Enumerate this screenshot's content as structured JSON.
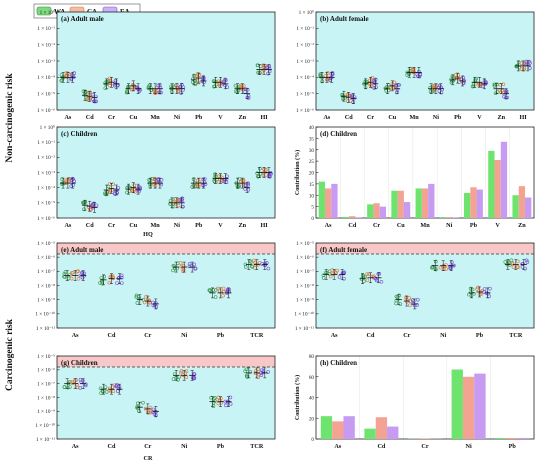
{
  "legend": {
    "items": [
      {
        "label": "WA",
        "color": "#7ddb7d"
      },
      {
        "label": "CA",
        "color": "#f6bba1"
      },
      {
        "label": "EA",
        "color": "#c9b3f4"
      }
    ]
  },
  "colors": {
    "panel_bg": "#c8f4f6",
    "threshold_band": "#f8c8c8",
    "WA_bar": "#6ee46e",
    "CA_bar": "#f3a392",
    "EA_bar": "#c79bf2",
    "WA_point": "#3c9c4c",
    "CA_point": "#e07a3e",
    "EA_point": "#7f4ed8"
  },
  "ylabels": {
    "noncarcinogenic": "Non-carcinogenic risk",
    "carcinogenic": "Carcinogenic risk"
  },
  "xgroup_labels": {
    "hq": "HQ",
    "cr": "CR"
  },
  "chart_data": [
    {
      "id": "a",
      "type": "scatter",
      "title": "(a) Adult male",
      "categories": [
        "As",
        "Cd",
        "Cr",
        "Cu",
        "Mn",
        "Ni",
        "Pb",
        "V",
        "Zn",
        "HI"
      ],
      "ylog": true,
      "ylim": [
        1e-06,
        1
      ],
      "ytick_labels": [
        "1 × 10⁻⁶",
        "1 × 10⁻⁵",
        "1 × 10⁻⁴",
        "1 × 10⁻³",
        "1 × 10⁻²",
        "1 × 10⁻¹",
        "1 × 10⁰"
      ],
      "series": [
        {
          "name": "WA",
          "values": [
            0.0001,
            8e-06,
            4e-05,
            2e-05,
            2e-05,
            2e-05,
            7e-05,
            5e-05,
            2e-05,
            0.0003
          ]
        },
        {
          "name": "CA",
          "values": [
            0.0001,
            7e-06,
            5e-05,
            3e-05,
            2e-05,
            2e-05,
            9e-05,
            5e-05,
            2e-05,
            0.0003
          ]
        },
        {
          "name": "EA",
          "values": [
            0.0001,
            6e-06,
            4e-05,
            2e-05,
            2e-05,
            2e-05,
            6e-05,
            4e-05,
            1e-05,
            0.0003
          ]
        }
      ]
    },
    {
      "id": "b",
      "type": "scatter",
      "title": "(b) Adult female",
      "categories": [
        "As",
        "Cd",
        "Cr",
        "Cu",
        "Mn",
        "Ni",
        "Pb",
        "V",
        "Zn",
        "HI"
      ],
      "ylog": true,
      "ylim": [
        1e-06,
        1
      ],
      "ytick_labels": [
        "1 × 10⁻⁶",
        "1 × 10⁻⁵",
        "1 × 10⁻⁴",
        "1 × 10⁻³",
        "1 × 10⁻²",
        "1 × 10⁻¹",
        "1 × 10⁰"
      ],
      "series": [
        {
          "name": "WA",
          "values": [
            0.0001,
            7e-06,
            4e-05,
            2e-05,
            0.0002,
            2e-05,
            7e-05,
            5e-05,
            2e-05,
            0.0005
          ]
        },
        {
          "name": "CA",
          "values": [
            0.0001,
            6e-06,
            5e-05,
            3e-05,
            0.0002,
            2e-05,
            9e-05,
            5e-05,
            2e-05,
            0.0005
          ]
        },
        {
          "name": "EA",
          "values": [
            0.0001,
            5e-06,
            4e-05,
            2e-05,
            0.0002,
            2e-05,
            6e-05,
            4e-05,
            1e-05,
            0.0005
          ]
        }
      ]
    },
    {
      "id": "c",
      "type": "scatter",
      "title": "(c) Children",
      "categories": [
        "As",
        "Cd",
        "Cr",
        "Cu",
        "Mn",
        "Ni",
        "Pb",
        "V",
        "Zn",
        "HI"
      ],
      "ylog": true,
      "ylim": [
        1e-06,
        1
      ],
      "ytick_labels": [
        "1 × 10⁻⁶",
        "1 × 10⁻⁵",
        "1 × 10⁻⁴",
        "1 × 10⁻³",
        "1 × 10⁻²",
        "1 × 10⁻¹",
        "1 × 10⁰"
      ],
      "series": [
        {
          "name": "WA",
          "values": [
            0.0002,
            7e-06,
            7e-05,
            8e-05,
            0.0002,
            1e-05,
            0.0002,
            0.0004,
            0.0002,
            0.001
          ]
        },
        {
          "name": "CA",
          "values": [
            0.0002,
            6e-06,
            9e-05,
            0.0001,
            0.0002,
            1e-05,
            0.0002,
            0.0004,
            0.0002,
            0.001
          ]
        },
        {
          "name": "EA",
          "values": [
            0.0002,
            5e-06,
            7e-05,
            8e-05,
            0.0002,
            1e-05,
            0.0002,
            0.0004,
            0.0001,
            0.001
          ]
        }
      ]
    },
    {
      "id": "d",
      "type": "bar",
      "title": "(d) Children",
      "ylabel": "Contribution (%)",
      "categories": [
        "As",
        "Cd",
        "Cr",
        "Cu",
        "Mn",
        "Ni",
        "Pb",
        "V",
        "Zn"
      ],
      "ylim": [
        0,
        40
      ],
      "yticks": [
        0,
        5,
        10,
        15,
        20,
        25,
        30,
        35,
        40
      ],
      "series": [
        {
          "name": "WA",
          "values": [
            16,
            0.5,
            6,
            12,
            13,
            0.4,
            11,
            29.5,
            10
          ]
        },
        {
          "name": "CA",
          "values": [
            13,
            0.8,
            6.5,
            12,
            13,
            0.4,
            13.5,
            25.5,
            14
          ]
        },
        {
          "name": "EA",
          "values": [
            15,
            0.3,
            5,
            7,
            15,
            0.3,
            12.5,
            33.5,
            9
          ]
        }
      ]
    },
    {
      "id": "e",
      "type": "scatter",
      "title": "(e) Adult male",
      "categories": [
        "As",
        "Cd",
        "Cr",
        "Ni",
        "Pb",
        "TCR"
      ],
      "ylog": true,
      "ylim": [
        1e-11,
        1e-05
      ],
      "threshold": 0.0001,
      "ytick_labels": [
        "1 × 10⁻¹¹",
        "1 × 10⁻¹⁰",
        "1 × 10⁻⁹",
        "1 × 10⁻⁸",
        "1 × 10⁻⁷",
        "1 × 10⁻⁶",
        "1 × 10⁻⁵"
      ],
      "series": [
        {
          "name": "WA",
          "values": [
            5e-08,
            2.5e-08,
            1e-09,
            2e-07,
            3e-09,
            3e-07
          ]
        },
        {
          "name": "CA",
          "values": [
            5e-08,
            3e-08,
            8e-10,
            2e-07,
            3e-09,
            3e-07
          ]
        },
        {
          "name": "EA",
          "values": [
            5e-08,
            3e-08,
            5e-10,
            2e-07,
            3e-09,
            3e-07
          ]
        }
      ]
    },
    {
      "id": "f",
      "type": "scatter",
      "title": "(f) Adult female",
      "categories": [
        "As",
        "Cd",
        "Cr",
        "Ni",
        "Pb",
        "TCR"
      ],
      "ylog": true,
      "ylim": [
        1e-11,
        1e-05
      ],
      "threshold": 0.0001,
      "ytick_labels": [
        "1 × 10⁻¹¹",
        "1 × 10⁻¹⁰",
        "1 × 10⁻⁹",
        "1 × 10⁻⁸",
        "1 × 10⁻⁷",
        "1 × 10⁻⁶",
        "1 × 10⁻⁵"
      ],
      "series": [
        {
          "name": "WA",
          "values": [
            6e-08,
            3e-08,
            1e-09,
            2.5e-07,
            3e-09,
            3e-07
          ]
        },
        {
          "name": "CA",
          "values": [
            6e-08,
            3.5e-08,
            8e-10,
            2.5e-07,
            3.5e-09,
            3e-07
          ]
        },
        {
          "name": "EA",
          "values": [
            6e-08,
            3.5e-08,
            5e-10,
            2.5e-07,
            3e-09,
            3e-07
          ]
        }
      ]
    },
    {
      "id": "g",
      "type": "scatter",
      "title": "(g) Children",
      "categories": [
        "As",
        "Cd",
        "Cr",
        "Ni",
        "Pb",
        "TCR"
      ],
      "xgroup": "CR",
      "ylog": true,
      "ylim": [
        1e-11,
        1e-05
      ],
      "threshold": 0.0001,
      "ytick_labels": [
        "1 × 10⁻¹¹",
        "1 × 10⁻¹⁰",
        "1 × 10⁻⁹",
        "1 × 10⁻⁸",
        "1 × 10⁻⁷",
        "1 × 10⁻⁶",
        "1 × 10⁻⁵"
      ],
      "series": [
        {
          "name": "WA",
          "values": [
            1e-07,
            4e-08,
            2e-09,
            4e-07,
            5e-09,
            6e-07
          ]
        },
        {
          "name": "CA",
          "values": [
            1e-07,
            4e-08,
            1.5e-09,
            4e-07,
            5e-09,
            6e-07
          ]
        },
        {
          "name": "EA",
          "values": [
            1e-07,
            4e-08,
            1e-09,
            4e-07,
            5e-09,
            6e-07
          ]
        }
      ]
    },
    {
      "id": "h",
      "type": "bar",
      "title": "(h) Children",
      "ylabel": "Contribution (%)",
      "categories": [
        "As",
        "Cd",
        "Cr",
        "Ni",
        "Pb"
      ],
      "ylim": [
        0,
        80
      ],
      "yticks": [
        0,
        20,
        40,
        60,
        80
      ],
      "series": [
        {
          "name": "WA",
          "values": [
            22,
            10,
            0.3,
            67,
            1
          ]
        },
        {
          "name": "CA",
          "values": [
            17,
            21,
            0.4,
            60,
            1
          ]
        },
        {
          "name": "EA",
          "values": [
            22,
            12,
            0.2,
            63,
            1
          ]
        }
      ]
    }
  ]
}
